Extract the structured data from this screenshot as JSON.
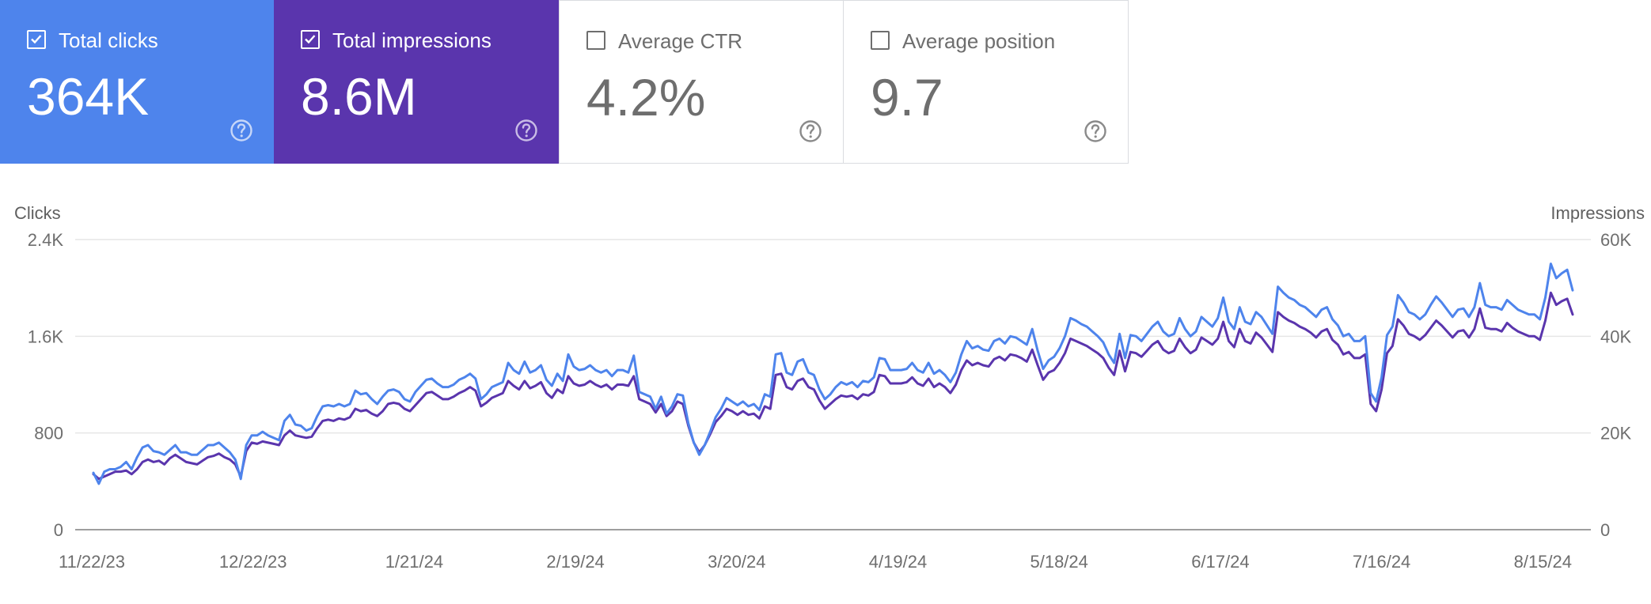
{
  "cards": [
    {
      "label": "Total clicks",
      "value": "364K",
      "checked": true
    },
    {
      "label": "Total impressions",
      "value": "8.6M",
      "checked": true
    },
    {
      "label": "Average CTR",
      "value": "4.2%",
      "checked": false
    },
    {
      "label": "Average position",
      "value": "9.7",
      "checked": false
    }
  ],
  "colors": {
    "clicks": "#4e84ec",
    "impressions": "#5a35ad",
    "grid": "#e6e6e6",
    "axis": "#9e9e9e",
    "tick_text": "#6e6e6e"
  },
  "chart_data": {
    "type": "line",
    "left_axis": {
      "label": "Clicks",
      "ticks": [
        "0",
        "800",
        "1.6K",
        "2.4K"
      ],
      "range": [
        0,
        2400
      ]
    },
    "right_axis": {
      "label": "Impressions",
      "ticks": [
        "0",
        "20K",
        "40K",
        "60K"
      ],
      "range": [
        0,
        60000
      ]
    },
    "x_ticks": [
      "11/22/23",
      "12/22/23",
      "1/21/24",
      "2/19/24",
      "3/20/24",
      "4/19/24",
      "5/18/24",
      "6/17/24",
      "7/16/24",
      "8/15/24"
    ],
    "series": [
      {
        "name": "Clicks",
        "axis": "left",
        "color": "#4e84ec",
        "values": [
          470,
          380,
          480,
          500,
          500,
          520,
          560,
          500,
          600,
          680,
          700,
          650,
          640,
          620,
          660,
          700,
          640,
          640,
          620,
          620,
          660,
          700,
          700,
          720,
          680,
          640,
          580,
          420,
          700,
          780,
          780,
          810,
          780,
          760,
          740,
          900,
          950,
          870,
          860,
          820,
          840,
          940,
          1020,
          1030,
          1020,
          1040,
          1020,
          1040,
          1150,
          1120,
          1130,
          1080,
          1040,
          1100,
          1150,
          1160,
          1140,
          1080,
          1060,
          1140,
          1190,
          1240,
          1250,
          1210,
          1180,
          1180,
          1200,
          1240,
          1260,
          1290,
          1250,
          1080,
          1120,
          1180,
          1200,
          1220,
          1380,
          1320,
          1290,
          1390,
          1300,
          1320,
          1360,
          1240,
          1190,
          1290,
          1230,
          1450,
          1350,
          1320,
          1330,
          1360,
          1320,
          1300,
          1320,
          1270,
          1320,
          1320,
          1300,
          1440,
          1140,
          1120,
          1100,
          1000,
          1100,
          960,
          1020,
          1120,
          1110,
          880,
          720,
          620,
          700,
          810,
          930,
          1000,
          1090,
          1060,
          1030,
          1060,
          1020,
          1040,
          990,
          1120,
          1100,
          1450,
          1460,
          1300,
          1280,
          1390,
          1410,
          1300,
          1280,
          1160,
          1080,
          1120,
          1180,
          1220,
          1200,
          1220,
          1180,
          1230,
          1220,
          1260,
          1420,
          1410,
          1320,
          1320,
          1320,
          1330,
          1380,
          1320,
          1300,
          1380,
          1290,
          1320,
          1280,
          1220,
          1300,
          1450,
          1560,
          1500,
          1520,
          1490,
          1480,
          1560,
          1580,
          1540,
          1600,
          1590,
          1560,
          1530,
          1660,
          1480,
          1330,
          1400,
          1430,
          1500,
          1600,
          1750,
          1730,
          1700,
          1680,
          1640,
          1600,
          1550,
          1450,
          1380,
          1620,
          1420,
          1610,
          1600,
          1560,
          1620,
          1680,
          1720,
          1640,
          1600,
          1620,
          1750,
          1660,
          1600,
          1640,
          1760,
          1720,
          1680,
          1750,
          1920,
          1720,
          1660,
          1840,
          1720,
          1700,
          1800,
          1760,
          1690,
          1620,
          2010,
          1960,
          1920,
          1900,
          1860,
          1840,
          1800,
          1760,
          1820,
          1840,
          1740,
          1690,
          1600,
          1620,
          1560,
          1560,
          1600,
          1130,
          1060,
          1260,
          1610,
          1680,
          1940,
          1880,
          1800,
          1780,
          1740,
          1780,
          1860,
          1930,
          1880,
          1820,
          1760,
          1820,
          1830,
          1760,
          1840,
          2040,
          1860,
          1840,
          1840,
          1820,
          1900,
          1860,
          1820,
          1800,
          1780,
          1780,
          1740,
          1920,
          2200,
          2080,
          2120,
          2150,
          1980
        ]
      },
      {
        "name": "Impressions",
        "axis": "right",
        "color": "#5a35ad",
        "values": [
          11500,
          10500,
          11000,
          11500,
          12000,
          12000,
          12250,
          11500,
          12500,
          14000,
          14500,
          14000,
          14250,
          13500,
          14750,
          15500,
          14750,
          14000,
          13750,
          13500,
          14250,
          15000,
          15250,
          15750,
          15000,
          14500,
          13500,
          11000,
          16250,
          18000,
          17750,
          18250,
          18000,
          17750,
          17500,
          19500,
          20500,
          19500,
          19250,
          19000,
          19250,
          21000,
          22500,
          22750,
          22500,
          23000,
          22750,
          23250,
          25000,
          24500,
          24750,
          24000,
          23500,
          24500,
          26000,
          26250,
          26000,
          25000,
          24500,
          25750,
          27000,
          28250,
          28500,
          27750,
          27000,
          27000,
          27500,
          28250,
          28750,
          29500,
          28750,
          25500,
          26250,
          27250,
          27750,
          28250,
          30750,
          29750,
          29000,
          30750,
          29250,
          29750,
          30500,
          28250,
          27250,
          29000,
          28250,
          31750,
          30250,
          29750,
          30000,
          30750,
          30000,
          29500,
          30000,
          29000,
          30000,
          30000,
          29750,
          31750,
          27000,
          26500,
          26000,
          24250,
          26000,
          23500,
          24500,
          26500,
          26000,
          21500,
          18000,
          16000,
          17500,
          19750,
          22250,
          23500,
          25000,
          24500,
          23750,
          24500,
          23750,
          24000,
          23000,
          25500,
          25000,
          32000,
          32250,
          29500,
          29000,
          30750,
          31250,
          29500,
          29000,
          26750,
          25000,
          26000,
          27000,
          27750,
          27500,
          27750,
          27000,
          28000,
          27750,
          28500,
          32000,
          31750,
          30250,
          30250,
          30250,
          30500,
          31500,
          30250,
          29750,
          31250,
          29500,
          30250,
          29500,
          28250,
          30000,
          33000,
          35000,
          34000,
          34500,
          34000,
          33750,
          35250,
          35750,
          35000,
          36250,
          36000,
          35500,
          34750,
          37250,
          34000,
          31000,
          32500,
          33000,
          34500,
          36500,
          39500,
          39000,
          38500,
          38000,
          37250,
          36500,
          35500,
          33500,
          32000,
          37000,
          32750,
          36750,
          36500,
          35750,
          37000,
          38250,
          39000,
          37250,
          36500,
          37000,
          39500,
          37750,
          36500,
          37250,
          39750,
          39000,
          38250,
          39500,
          43000,
          39000,
          37750,
          41500,
          39000,
          38500,
          40750,
          39750,
          38250,
          36750,
          45000,
          44000,
          43250,
          42750,
          42000,
          41500,
          40750,
          39750,
          41000,
          41500,
          39250,
          38250,
          36250,
          36750,
          35500,
          35500,
          36250,
          26000,
          24500,
          29000,
          36500,
          38000,
          43500,
          42250,
          40500,
          40000,
          39250,
          40250,
          41750,
          43250,
          42250,
          41000,
          39750,
          41000,
          41250,
          39750,
          41500,
          45750,
          41750,
          41500,
          41500,
          41000,
          42750,
          41750,
          41000,
          40500,
          40000,
          40000,
          39250,
          43250,
          49000,
          46500,
          47250,
          47750,
          44500
        ]
      }
    ]
  }
}
